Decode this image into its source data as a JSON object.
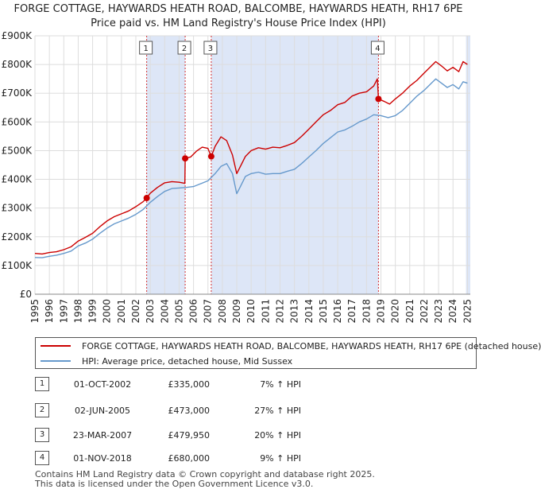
{
  "header": {
    "title": "FORGE COTTAGE, HAYWARDS HEATH ROAD, BALCOMBE, HAYWARDS HEATH, RH17 6PE",
    "subtitle": "Price paid vs. HM Land Registry's House Price Index (HPI)"
  },
  "colors": {
    "property": "#cc0000",
    "hpi": "#6699cc",
    "shade": "#dde6f7",
    "grid": "#dddddd"
  },
  "chart_data": {
    "type": "line",
    "title": "Price paid vs. HM Land Registry's House Price Index (HPI)",
    "xlabel": "",
    "ylabel": "",
    "xlim": [
      1995,
      2025.2
    ],
    "ylim": [
      0,
      900000
    ],
    "grid": true,
    "y_ticks": [
      {
        "value": 0,
        "label": "£0"
      },
      {
        "value": 100000,
        "label": "£100K"
      },
      {
        "value": 200000,
        "label": "£200K"
      },
      {
        "value": 300000,
        "label": "£300K"
      },
      {
        "value": 400000,
        "label": "£400K"
      },
      {
        "value": 500000,
        "label": "£500K"
      },
      {
        "value": 600000,
        "label": "£600K"
      },
      {
        "value": 700000,
        "label": "£700K"
      },
      {
        "value": 800000,
        "label": "£800K"
      },
      {
        "value": 900000,
        "label": "£900K"
      }
    ],
    "x_ticks": [
      "1995",
      "1996",
      "1997",
      "1998",
      "1999",
      "2000",
      "2001",
      "2002",
      "2003",
      "2004",
      "2005",
      "2006",
      "2007",
      "2008",
      "2009",
      "2010",
      "2011",
      "2012",
      "2013",
      "2014",
      "2015",
      "2016",
      "2017",
      "2018",
      "2019",
      "2020",
      "2021",
      "2022",
      "2023",
      "2024",
      "2025"
    ],
    "shaded_ranges": [
      [
        2002.75,
        2005.42
      ],
      [
        2007.23,
        2018.83
      ],
      [
        2024.9,
        2025.2
      ]
    ],
    "series": [
      {
        "name": "FORGE COTTAGE, HAYWARDS HEATH ROAD, BALCOMBE, HAYWARDS HEATH, RH17 6PE (detached house)",
        "color": "#cc0000",
        "x": [
          1995.0,
          1995.5,
          1996.0,
          1996.5,
          1997.0,
          1997.5,
          1998.0,
          1998.5,
          1999.0,
          1999.5,
          2000.0,
          2000.5,
          2001.0,
          2001.5,
          2002.0,
          2002.5,
          2002.75,
          2003.0,
          2003.5,
          2004.0,
          2004.5,
          2005.0,
          2005.4,
          2005.42,
          2005.8,
          2006.2,
          2006.6,
          2007.0,
          2007.23,
          2007.5,
          2007.9,
          2008.3,
          2008.7,
          2009.0,
          2009.2,
          2009.6,
          2010.0,
          2010.5,
          2011.0,
          2011.5,
          2012.0,
          2012.5,
          2013.0,
          2013.5,
          2014.0,
          2014.5,
          2015.0,
          2015.5,
          2016.0,
          2016.5,
          2017.0,
          2017.5,
          2018.0,
          2018.5,
          2018.75,
          2018.83,
          2019.2,
          2019.6,
          2020.0,
          2020.5,
          2021.0,
          2021.5,
          2022.0,
          2022.5,
          2022.8,
          2023.2,
          2023.6,
          2024.0,
          2024.4,
          2024.7,
          2025.0
        ],
        "y": [
          142000,
          140000,
          145000,
          148000,
          155000,
          165000,
          185000,
          198000,
          212000,
          235000,
          255000,
          270000,
          280000,
          290000,
          305000,
          322000,
          335000,
          352000,
          372000,
          388000,
          392000,
          390000,
          386000,
          473000,
          478000,
          498000,
          512000,
          508000,
          479950,
          515000,
          548000,
          535000,
          485000,
          420000,
          440000,
          480000,
          500000,
          510000,
          505000,
          512000,
          510000,
          518000,
          528000,
          550000,
          575000,
          600000,
          625000,
          640000,
          660000,
          668000,
          690000,
          700000,
          705000,
          725000,
          750000,
          680000,
          672000,
          662000,
          680000,
          700000,
          725000,
          745000,
          770000,
          795000,
          810000,
          795000,
          778000,
          790000,
          775000,
          810000,
          800000
        ]
      },
      {
        "name": "HPI: Average price, detached house, Mid Sussex",
        "color": "#6699cc",
        "x": [
          1995.0,
          1995.5,
          1996.0,
          1996.5,
          1997.0,
          1997.5,
          1998.0,
          1998.5,
          1999.0,
          1999.5,
          2000.0,
          2000.5,
          2001.0,
          2001.5,
          2002.0,
          2002.5,
          2003.0,
          2003.5,
          2004.0,
          2004.5,
          2005.0,
          2005.5,
          2006.0,
          2006.5,
          2007.0,
          2007.5,
          2007.9,
          2008.3,
          2008.7,
          2009.0,
          2009.2,
          2009.6,
          2010.0,
          2010.5,
          2011.0,
          2011.5,
          2012.0,
          2012.5,
          2013.0,
          2013.5,
          2014.0,
          2014.5,
          2015.0,
          2015.5,
          2016.0,
          2016.5,
          2017.0,
          2017.5,
          2018.0,
          2018.5,
          2019.0,
          2019.5,
          2020.0,
          2020.5,
          2021.0,
          2021.5,
          2022.0,
          2022.5,
          2022.8,
          2023.2,
          2023.6,
          2024.0,
          2024.4,
          2024.7,
          2025.0
        ],
        "y": [
          128000,
          127000,
          132000,
          136000,
          142000,
          150000,
          168000,
          178000,
          192000,
          212000,
          230000,
          245000,
          255000,
          265000,
          278000,
          295000,
          320000,
          340000,
          358000,
          368000,
          370000,
          372000,
          375000,
          385000,
          395000,
          420000,
          445000,
          455000,
          420000,
          350000,
          370000,
          410000,
          420000,
          425000,
          418000,
          420000,
          420000,
          428000,
          435000,
          455000,
          478000,
          500000,
          525000,
          545000,
          565000,
          572000,
          585000,
          600000,
          610000,
          625000,
          622000,
          615000,
          622000,
          640000,
          665000,
          690000,
          710000,
          735000,
          750000,
          735000,
          720000,
          730000,
          715000,
          740000,
          735000
        ]
      }
    ],
    "transactions": [
      {
        "label": "1",
        "x": 2002.75,
        "y": 335000
      },
      {
        "label": "2",
        "x": 2005.42,
        "y": 473000
      },
      {
        "label": "3",
        "x": 2007.23,
        "y": 479950
      },
      {
        "label": "4",
        "x": 2018.83,
        "y": 680000
      }
    ]
  },
  "legend": {
    "property_label": "FORGE COTTAGE, HAYWARDS HEATH ROAD, BALCOMBE, HAYWARDS HEATH, RH17 6PE (detached house)",
    "hpi_label": "HPI: Average price, detached house, Mid Sussex"
  },
  "transactions_table": [
    {
      "num": "1",
      "date": "01-OCT-2002",
      "price": "£335,000",
      "hpi": "7% ↑ HPI"
    },
    {
      "num": "2",
      "date": "02-JUN-2005",
      "price": "£473,000",
      "hpi": "27% ↑ HPI"
    },
    {
      "num": "3",
      "date": "23-MAR-2007",
      "price": "£479,950",
      "hpi": "20% ↑ HPI"
    },
    {
      "num": "4",
      "date": "01-NOV-2018",
      "price": "£680,000",
      "hpi": "9% ↑ HPI"
    }
  ],
  "footer": {
    "line1": "Contains HM Land Registry data © Crown copyright and database right 2025.",
    "line2": "This data is licensed under the Open Government Licence v3.0."
  }
}
